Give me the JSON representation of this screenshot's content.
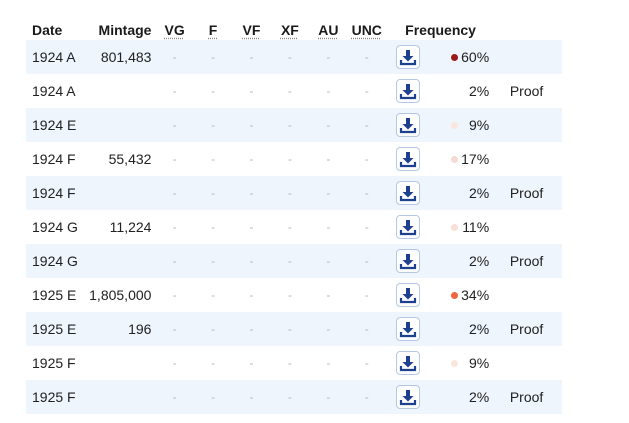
{
  "colors": {
    "row_alt_bg": "#eef5fd",
    "download_icon": "#1f3f8f"
  },
  "headers": {
    "date": "Date",
    "mintage": "Mintage",
    "vg": "VG",
    "f": "F",
    "vf": "VF",
    "xf": "XF",
    "au": "AU",
    "unc": "UNC",
    "frequency": "Frequency"
  },
  "empty_price": "-",
  "download_icon_name": "download-icon",
  "rows": [
    {
      "date": "1924 A",
      "mintage": "801,483",
      "frequency": "60%",
      "dot_color": "#9b1b1b",
      "note": ""
    },
    {
      "date": "1924 A",
      "mintage": "",
      "frequency": "2%",
      "dot_color": "",
      "note": "Proof"
    },
    {
      "date": "1924 E",
      "mintage": "",
      "frequency": "9%",
      "dot_color": "#fbe6df",
      "note": ""
    },
    {
      "date": "1924 F",
      "mintage": "55,432",
      "frequency": "17%",
      "dot_color": "#f7d9d3",
      "note": ""
    },
    {
      "date": "1924 F",
      "mintage": "",
      "frequency": "2%",
      "dot_color": "",
      "note": "Proof"
    },
    {
      "date": "1924 G",
      "mintage": "11,224",
      "frequency": "11%",
      "dot_color": "#f9dfd9",
      "note": ""
    },
    {
      "date": "1924 G",
      "mintage": "",
      "frequency": "2%",
      "dot_color": "",
      "note": "Proof"
    },
    {
      "date": "1925 E",
      "mintage": "1,805,000",
      "frequency": "34%",
      "dot_color": "#f0643c",
      "note": ""
    },
    {
      "date": "1925 E",
      "mintage": "196",
      "frequency": "2%",
      "dot_color": "",
      "note": "Proof"
    },
    {
      "date": "1925 F",
      "mintage": "",
      "frequency": "9%",
      "dot_color": "#fbe6df",
      "note": ""
    },
    {
      "date": "1925 F",
      "mintage": "",
      "frequency": "2%",
      "dot_color": "",
      "note": "Proof"
    }
  ]
}
